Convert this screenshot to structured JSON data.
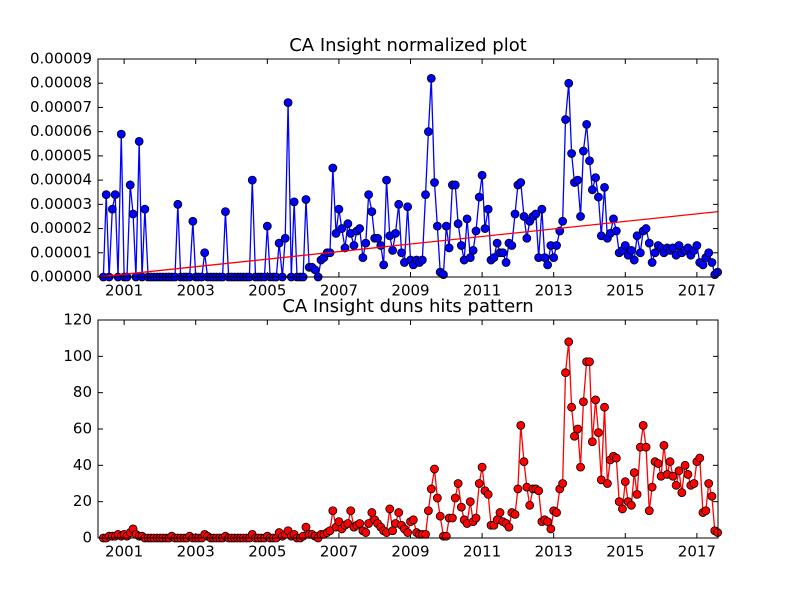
{
  "chart_data": [
    {
      "type": "line",
      "title": "CA Insight normalized plot",
      "x": [
        2000.42,
        2000.5,
        2000.58,
        2000.67,
        2000.75,
        2000.83,
        2000.92,
        2001.0,
        2001.08,
        2001.17,
        2001.25,
        2001.33,
        2001.42,
        2001.5,
        2001.58,
        2001.67,
        2001.75,
        2001.83,
        2001.92,
        2002.0,
        2002.08,
        2002.17,
        2002.25,
        2002.33,
        2002.42,
        2002.5,
        2002.58,
        2002.67,
        2002.75,
        2002.83,
        2002.92,
        2003.0,
        2003.08,
        2003.17,
        2003.25,
        2003.33,
        2003.42,
        2003.5,
        2003.58,
        2003.67,
        2003.75,
        2003.83,
        2003.92,
        2004.0,
        2004.08,
        2004.17,
        2004.25,
        2004.33,
        2004.42,
        2004.5,
        2004.58,
        2004.67,
        2004.75,
        2004.83,
        2004.92,
        2005.0,
        2005.08,
        2005.17,
        2005.25,
        2005.33,
        2005.42,
        2005.5,
        2005.58,
        2005.67,
        2005.75,
        2005.83,
        2005.92,
        2006.0,
        2006.08,
        2006.17,
        2006.25,
        2006.33,
        2006.42,
        2006.5,
        2006.58,
        2006.67,
        2006.75,
        2006.83,
        2006.92,
        2007.0,
        2007.08,
        2007.17,
        2007.25,
        2007.33,
        2007.42,
        2007.5,
        2007.58,
        2007.67,
        2007.75,
        2007.83,
        2007.92,
        2008.0,
        2008.08,
        2008.17,
        2008.25,
        2008.33,
        2008.42,
        2008.5,
        2008.58,
        2008.67,
        2008.75,
        2008.83,
        2008.92,
        2009.0,
        2009.08,
        2009.17,
        2009.25,
        2009.33,
        2009.42,
        2009.5,
        2009.58,
        2009.67,
        2009.75,
        2009.83,
        2009.92,
        2010.0,
        2010.08,
        2010.17,
        2010.25,
        2010.33,
        2010.42,
        2010.5,
        2010.58,
        2010.67,
        2010.75,
        2010.83,
        2010.92,
        2011.0,
        2011.08,
        2011.17,
        2011.25,
        2011.33,
        2011.42,
        2011.5,
        2011.58,
        2011.67,
        2011.75,
        2011.83,
        2011.92,
        2012.0,
        2012.08,
        2012.17,
        2012.25,
        2012.33,
        2012.42,
        2012.5,
        2012.58,
        2012.67,
        2012.75,
        2012.83,
        2012.92,
        2013.0,
        2013.08,
        2013.17,
        2013.25,
        2013.33,
        2013.42,
        2013.5,
        2013.58,
        2013.67,
        2013.75,
        2013.83,
        2013.92,
        2014.0,
        2014.08,
        2014.17,
        2014.25,
        2014.33,
        2014.42,
        2014.5,
        2014.58,
        2014.67,
        2014.75,
        2014.83,
        2014.92,
        2015.0,
        2015.08,
        2015.17,
        2015.25,
        2015.33,
        2015.42,
        2015.5,
        2015.58,
        2015.67,
        2015.75,
        2015.83,
        2015.92,
        2016.0,
        2016.08,
        2016.17,
        2016.25,
        2016.33,
        2016.42,
        2016.5,
        2016.58,
        2016.67,
        2016.75,
        2016.83,
        2016.92,
        2017.0,
        2017.08,
        2017.17,
        2017.25,
        2017.33,
        2017.42,
        2017.5,
        2017.58
      ],
      "series": [
        {
          "color": "#0000ff",
          "marker": true,
          "values": [
            0,
            3.4e-05,
            0,
            2.8e-05,
            3.4e-05,
            0,
            5.9e-05,
            0,
            0,
            3.8e-05,
            2.6e-05,
            0,
            5.6e-05,
            0,
            2.8e-05,
            0,
            0,
            0,
            0,
            0,
            0,
            0,
            0,
            0,
            0,
            3e-05,
            0,
            0,
            0,
            0,
            2.3e-05,
            0,
            0,
            0,
            1e-05,
            0,
            0,
            0,
            0,
            0,
            0,
            2.7e-05,
            0,
            0,
            0,
            0,
            0,
            0,
            0,
            0,
            4e-05,
            0,
            0,
            0,
            0,
            2.1e-05,
            0,
            0,
            0,
            1.4e-05,
            0,
            1.6e-05,
            7.2e-05,
            0,
            3.1e-05,
            0,
            0,
            0,
            3.2e-05,
            4e-06,
            4e-06,
            3e-06,
            0,
            7e-06,
            8e-06,
            1e-05,
            1e-05,
            4.5e-05,
            1.8e-05,
            2.8e-05,
            2e-05,
            1.2e-05,
            2.2e-05,
            1.8e-05,
            1.3e-05,
            1.9e-05,
            2e-05,
            8e-06,
            1.4e-05,
            3.4e-05,
            2.7e-05,
            1.6e-05,
            1.6e-05,
            1.3e-05,
            5e-06,
            4e-05,
            1.7e-05,
            1.1e-05,
            1.8e-05,
            3e-05,
            1e-05,
            6e-06,
            2.9e-05,
            7e-06,
            5e-06,
            7e-06,
            6e-06,
            7e-06,
            3.4e-05,
            6e-05,
            8.2e-05,
            3.9e-05,
            2.1e-05,
            2e-06,
            1e-06,
            2.1e-05,
            1.2e-05,
            3.8e-05,
            3.8e-05,
            2.2e-05,
            1.3e-05,
            7e-06,
            2.4e-05,
            8e-06,
            1.1e-05,
            1.9e-05,
            3.3e-05,
            4.2e-05,
            2e-05,
            2.8e-05,
            7e-06,
            8e-06,
            1.4e-05,
            1e-05,
            1e-05,
            6e-06,
            1.4e-05,
            1.3e-05,
            2.6e-05,
            3.8e-05,
            3.9e-05,
            2.5e-05,
            1.6e-05,
            2.3e-05,
            2.5e-05,
            2.6e-05,
            8e-06,
            2.8e-05,
            8e-06,
            5e-06,
            1.3e-05,
            8e-06,
            1.3e-05,
            1.9e-05,
            2.3e-05,
            6.5e-05,
            8e-05,
            5.1e-05,
            3.9e-05,
            4e-05,
            2.5e-05,
            5.2e-05,
            6.3e-05,
            4.8e-05,
            3.6e-05,
            4.1e-05,
            3.3e-05,
            1.7e-05,
            3.7e-05,
            1.6e-05,
            1.8e-05,
            2.4e-05,
            1.9e-05,
            1e-05,
            1.1e-05,
            1.3e-05,
            9e-06,
            1.1e-05,
            7e-06,
            1.7e-05,
            1e-05,
            1.9e-05,
            2e-05,
            1.4e-05,
            6e-06,
            1e-05,
            1.3e-05,
            1.2e-05,
            1e-05,
            1.2e-05,
            1.1e-05,
            1.2e-05,
            9e-06,
            1.3e-05,
            1e-05,
            1.1e-05,
            1.2e-05,
            9e-06,
            1.1e-05,
            1.3e-05,
            6e-06,
            5e-06,
            8e-06,
            1e-05,
            6e-06,
            1e-06,
            2e-06
          ]
        },
        {
          "color": "#ff0000",
          "marker": false,
          "x": [
            2000.27,
            2017.59
          ],
          "values": [
            0,
            2.7e-05
          ]
        }
      ],
      "xlim": [
        2000.27,
        2017.59
      ],
      "xticks": [
        2001,
        2003,
        2005,
        2007,
        2009,
        2011,
        2013,
        2015,
        2017
      ],
      "ylim": [
        0,
        9e-05
      ],
      "yticks": [
        {
          "value": 0,
          "label": "0.00000"
        },
        {
          "value": 1e-05,
          "label": "0.00001"
        },
        {
          "value": 2e-05,
          "label": "0.00002"
        },
        {
          "value": 3e-05,
          "label": "0.00003"
        },
        {
          "value": 4e-05,
          "label": "0.00004"
        },
        {
          "value": 5e-05,
          "label": "0.00005"
        },
        {
          "value": 6e-05,
          "label": "0.00006"
        },
        {
          "value": 7e-05,
          "label": "0.00007"
        },
        {
          "value": 8e-05,
          "label": "0.00008"
        },
        {
          "value": 9e-05,
          "label": "0.00009"
        }
      ]
    },
    {
      "type": "line",
      "title": "CA Insight duns hits pattern",
      "x": [
        2000.42,
        2000.5,
        2000.58,
        2000.67,
        2000.75,
        2000.83,
        2000.92,
        2001.0,
        2001.08,
        2001.17,
        2001.25,
        2001.33,
        2001.42,
        2001.5,
        2001.58,
        2001.67,
        2001.75,
        2001.83,
        2001.92,
        2002.0,
        2002.08,
        2002.17,
        2002.25,
        2002.33,
        2002.42,
        2002.5,
        2002.58,
        2002.67,
        2002.75,
        2002.83,
        2002.92,
        2003.0,
        2003.08,
        2003.17,
        2003.25,
        2003.33,
        2003.42,
        2003.5,
        2003.58,
        2003.67,
        2003.75,
        2003.83,
        2003.92,
        2004.0,
        2004.08,
        2004.17,
        2004.25,
        2004.33,
        2004.42,
        2004.5,
        2004.58,
        2004.67,
        2004.75,
        2004.83,
        2004.92,
        2005.0,
        2005.08,
        2005.17,
        2005.25,
        2005.33,
        2005.42,
        2005.5,
        2005.58,
        2005.67,
        2005.75,
        2005.83,
        2005.92,
        2006.0,
        2006.08,
        2006.17,
        2006.25,
        2006.33,
        2006.42,
        2006.5,
        2006.58,
        2006.67,
        2006.75,
        2006.83,
        2006.92,
        2007.0,
        2007.08,
        2007.17,
        2007.25,
        2007.33,
        2007.42,
        2007.5,
        2007.58,
        2007.67,
        2007.75,
        2007.83,
        2007.92,
        2008.0,
        2008.08,
        2008.17,
        2008.25,
        2008.33,
        2008.42,
        2008.5,
        2008.58,
        2008.67,
        2008.75,
        2008.83,
        2008.92,
        2009.0,
        2009.08,
        2009.17,
        2009.25,
        2009.33,
        2009.42,
        2009.5,
        2009.58,
        2009.67,
        2009.75,
        2009.83,
        2009.92,
        2010.0,
        2010.08,
        2010.17,
        2010.25,
        2010.33,
        2010.42,
        2010.5,
        2010.58,
        2010.67,
        2010.75,
        2010.83,
        2010.92,
        2011.0,
        2011.08,
        2011.17,
        2011.25,
        2011.33,
        2011.42,
        2011.5,
        2011.58,
        2011.67,
        2011.75,
        2011.83,
        2011.92,
        2012.0,
        2012.08,
        2012.17,
        2012.25,
        2012.33,
        2012.42,
        2012.5,
        2012.58,
        2012.67,
        2012.75,
        2012.83,
        2012.92,
        2013.0,
        2013.08,
        2013.17,
        2013.25,
        2013.33,
        2013.42,
        2013.5,
        2013.58,
        2013.67,
        2013.75,
        2013.83,
        2013.92,
        2014.0,
        2014.08,
        2014.17,
        2014.25,
        2014.33,
        2014.42,
        2014.5,
        2014.58,
        2014.67,
        2014.75,
        2014.83,
        2014.92,
        2015.0,
        2015.08,
        2015.17,
        2015.25,
        2015.33,
        2015.42,
        2015.5,
        2015.58,
        2015.67,
        2015.75,
        2015.83,
        2015.92,
        2016.0,
        2016.08,
        2016.17,
        2016.25,
        2016.33,
        2016.42,
        2016.5,
        2016.58,
        2016.67,
        2016.75,
        2016.83,
        2016.92,
        2017.0,
        2017.08,
        2017.17,
        2017.25,
        2017.33,
        2017.42,
        2017.5,
        2017.58
      ],
      "series": [
        {
          "color": "#ff0000",
          "marker": true,
          "values": [
            0,
            0,
            1,
            1,
            1,
            2,
            1,
            2,
            1,
            3,
            5,
            2,
            1,
            1,
            0,
            0,
            0,
            0,
            0,
            0,
            0,
            0,
            0,
            1,
            0,
            0,
            0,
            0,
            0,
            1,
            0,
            0,
            0,
            0,
            2,
            1,
            0,
            0,
            0,
            0,
            0,
            1,
            0,
            0,
            0,
            0,
            0,
            0,
            0,
            0,
            2,
            0,
            0,
            0,
            0,
            1,
            0,
            0,
            0,
            3,
            1,
            2,
            4,
            1,
            2,
            0,
            0,
            1,
            6,
            2,
            2,
            1,
            0,
            2,
            2,
            3,
            4,
            15,
            6,
            9,
            5,
            7,
            8,
            15,
            6,
            7,
            8,
            4,
            3,
            8,
            14,
            10,
            8,
            6,
            4,
            3,
            16,
            4,
            8,
            14,
            7,
            5,
            3,
            9,
            10,
            3,
            2,
            2,
            2,
            15,
            27,
            38,
            22,
            12,
            1,
            1,
            11,
            11,
            22,
            30,
            17,
            10,
            8,
            20,
            9,
            11,
            30,
            39,
            26,
            24,
            7,
            7,
            10,
            14,
            9,
            8,
            6,
            14,
            13,
            27,
            62,
            42,
            28,
            18,
            27,
            27,
            26,
            9,
            10,
            9,
            5,
            15,
            14,
            27,
            30,
            91,
            108,
            72,
            56,
            60,
            39,
            75,
            97,
            97,
            53,
            76,
            58,
            32,
            72,
            30,
            43,
            45,
            44,
            20,
            16,
            31,
            20,
            18,
            36,
            24,
            50,
            62,
            50,
            15,
            28,
            42,
            41,
            34,
            51,
            35,
            42,
            34,
            29,
            37,
            25,
            40,
            35,
            29,
            30,
            42,
            44,
            14,
            15,
            30,
            23,
            4,
            3
          ]
        }
      ],
      "xlim": [
        2000.27,
        2017.59
      ],
      "xticks": [
        2001,
        2003,
        2005,
        2007,
        2009,
        2011,
        2013,
        2015,
        2017
      ],
      "ylim": [
        0,
        120
      ],
      "yticks": [
        0,
        20,
        40,
        60,
        80,
        100,
        120
      ]
    }
  ]
}
